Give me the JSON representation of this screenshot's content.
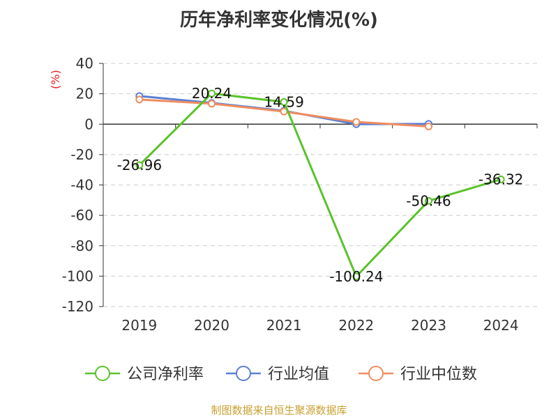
{
  "title": "历年净利率变化情况(%)",
  "unit_label": "(%)",
  "source": "制图数据来自恒生聚源数据库",
  "chart_data": {
    "type": "line",
    "x": [
      "2019",
      "2020",
      "2021",
      "2022",
      "2023",
      "2024"
    ],
    "ylim": [
      -120,
      40
    ],
    "yticks": [
      40,
      20,
      0,
      -20,
      -40,
      -60,
      -80,
      -100,
      -120
    ],
    "grid": true,
    "legend_position": "bottom",
    "series": [
      {
        "name": "公司净利率",
        "color": "#5ac229",
        "values": [
          -26.96,
          20.24,
          14.59,
          -100.24,
          -50.46,
          -36.32
        ],
        "labels": [
          "-26.96",
          "20.24",
          "14.59",
          "-100.24",
          "-50.46",
          "-36.32"
        ]
      },
      {
        "name": "行业均值",
        "color": "#5b7fd6",
        "values": [
          18.5,
          14.0,
          8.8,
          0.0,
          0.2,
          null
        ]
      },
      {
        "name": "行业中位数",
        "color": "#f08d5e",
        "values": [
          16.2,
          13.5,
          8.3,
          1.5,
          -1.5,
          null
        ]
      }
    ]
  }
}
